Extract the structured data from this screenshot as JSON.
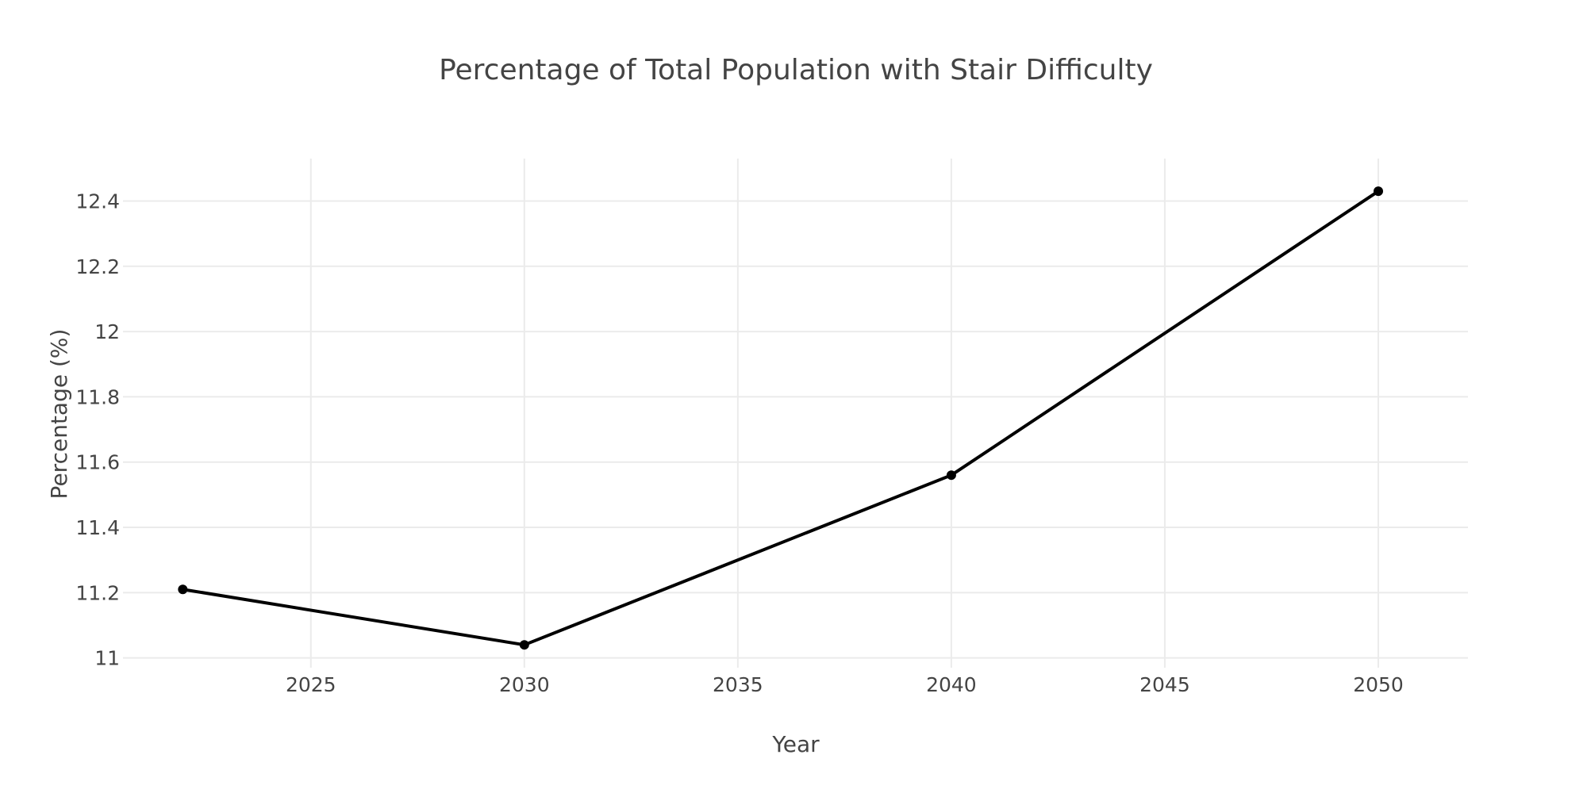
{
  "chart_data": {
    "type": "line",
    "title": "Percentage of Total Population with Stair Difficulty",
    "xlabel": "Year",
    "ylabel": "Percentage (%)",
    "x": [
      2022,
      2030,
      2040,
      2050
    ],
    "series": [
      {
        "values": [
          11.21,
          11.04,
          11.56,
          12.43
        ]
      }
    ],
    "xlim": [
      2020.6,
      2052.1
    ],
    "ylim": [
      10.97,
      12.53
    ],
    "xticks": [
      2025,
      2030,
      2035,
      2040,
      2045,
      2050
    ],
    "xtick_labels": [
      "2025",
      "2030",
      "2035",
      "2040",
      "2045",
      "2050"
    ],
    "yticks": [
      11,
      11.2,
      11.4,
      11.6,
      11.8,
      12,
      12.2,
      12.4
    ],
    "ytick_labels": [
      "11",
      "11.2",
      "11.4",
      "11.6",
      "11.8",
      "12",
      "12.2",
      "12.4"
    ],
    "grid": true,
    "line_color": "#000000",
    "marker": "circle",
    "legend": "none"
  }
}
